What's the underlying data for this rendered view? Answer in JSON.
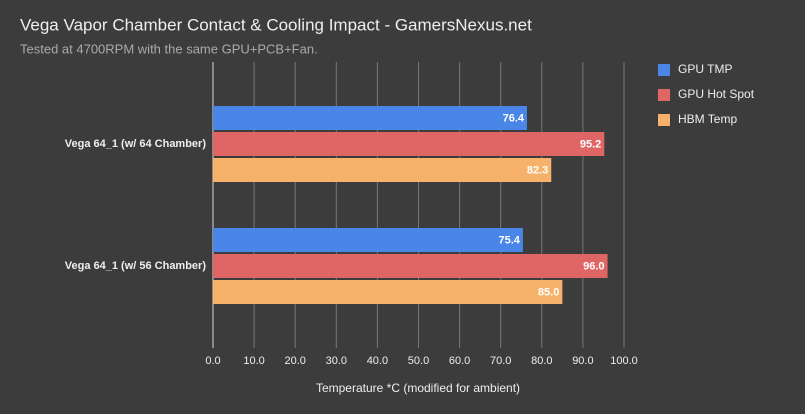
{
  "chart_data": {
    "type": "hbar",
    "title": "Vega Vapor Chamber Contact & Cooling Impact - GamersNexus.net",
    "subtitle": "Tested at 4700RPM with the same GPU+PCB+Fan.",
    "x_label": "Temperature *C (modified for ambient)",
    "categories": [
      "Vega 64_1 (w/ 64 Chamber)",
      "Vega 64_1 (w/ 56 Chamber)"
    ],
    "series": [
      {
        "name": "GPU TMP",
        "color": "#4a86e8",
        "values": [
          76.4,
          75.4
        ],
        "value_labels": [
          "76.4",
          "75.4"
        ]
      },
      {
        "name": "GPU Hot Spot",
        "color": "#e06666",
        "values": [
          95.2,
          96.0
        ],
        "value_labels": [
          "95.2",
          "96.0"
        ]
      },
      {
        "name": "HBM Temp",
        "color": "#f6b26b",
        "values": [
          82.3,
          85.0
        ],
        "value_labels": [
          "82.3",
          "85.0"
        ]
      }
    ],
    "xlim": [
      0,
      100
    ],
    "xticks": [
      {
        "value": 0,
        "label": "0.0"
      },
      {
        "value": 10,
        "label": "10.0"
      },
      {
        "value": 20,
        "label": "20.0"
      },
      {
        "value": 30,
        "label": "30.0"
      },
      {
        "value": 40,
        "label": "40.0"
      },
      {
        "value": 50,
        "label": "50.0"
      },
      {
        "value": 60,
        "label": "60.0"
      },
      {
        "value": 70,
        "label": "70.0"
      },
      {
        "value": 80,
        "label": "80.0"
      },
      {
        "value": 90,
        "label": "90.0"
      },
      {
        "value": 100,
        "label": "100.0"
      }
    ],
    "grid": true,
    "legend": "right"
  }
}
